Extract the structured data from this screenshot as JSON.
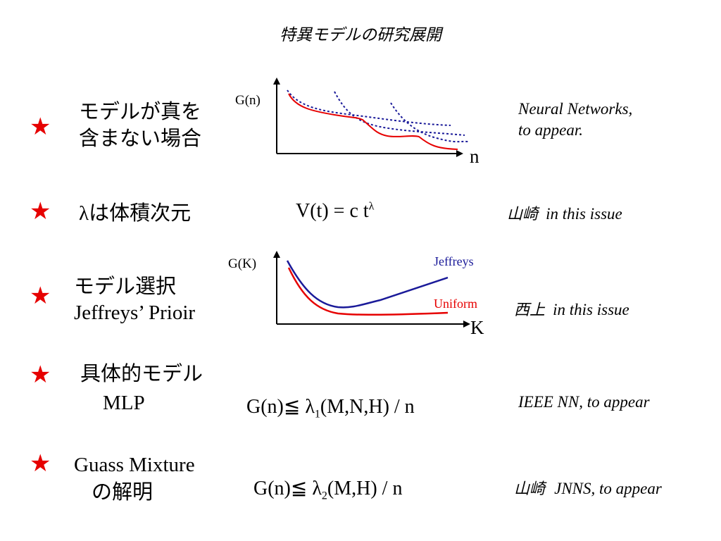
{
  "title": "特異モデルの研究展開",
  "star_symbol": "★",
  "rows": [
    {
      "label_line1": "モデルが真を",
      "label_line2": "含まない場合",
      "reference_line1": "Neural Networks,",
      "reference_line2": "to appear."
    },
    {
      "lambda": "λ",
      "label_rest": "は体積次元",
      "formula_main": "V(t) = c t",
      "formula_sup": "λ",
      "reference_jp": "山崎",
      "reference_en": "in this issue"
    },
    {
      "label_line1": "モデル選択",
      "label_line2": "Jeffreys’ Prioir",
      "reference_jp": "西上",
      "reference_en": "in this issue"
    },
    {
      "label_line1": "具体的モデル",
      "label_line2": "MLP",
      "formula_pre": "G(n)≦ λ",
      "formula_sub": "1",
      "formula_post": "(M,N,H) / n",
      "reference": "IEEE NN, to appear"
    },
    {
      "label_line1": "Guass Mixture",
      "label_line2": "の解明",
      "formula_pre": "G(n)≦ λ",
      "formula_sub": "2",
      "formula_post": "(M,H) / n",
      "reference_jp": "山崎",
      "reference_en": "JNNS, to appear"
    }
  ],
  "chart_data": [
    {
      "type": "line",
      "ylabel": "G(n)",
      "xlabel": "n",
      "colors": {
        "solid": "#e60000",
        "dotted": "#1a1a99",
        "axes": "#000000"
      }
    },
    {
      "type": "line",
      "ylabel": "G(K)",
      "xlabel": "K",
      "series": [
        {
          "name": "Jeffreys",
          "color": "#1a1a99"
        },
        {
          "name": "Uniform",
          "color": "#e60000"
        }
      ]
    }
  ]
}
